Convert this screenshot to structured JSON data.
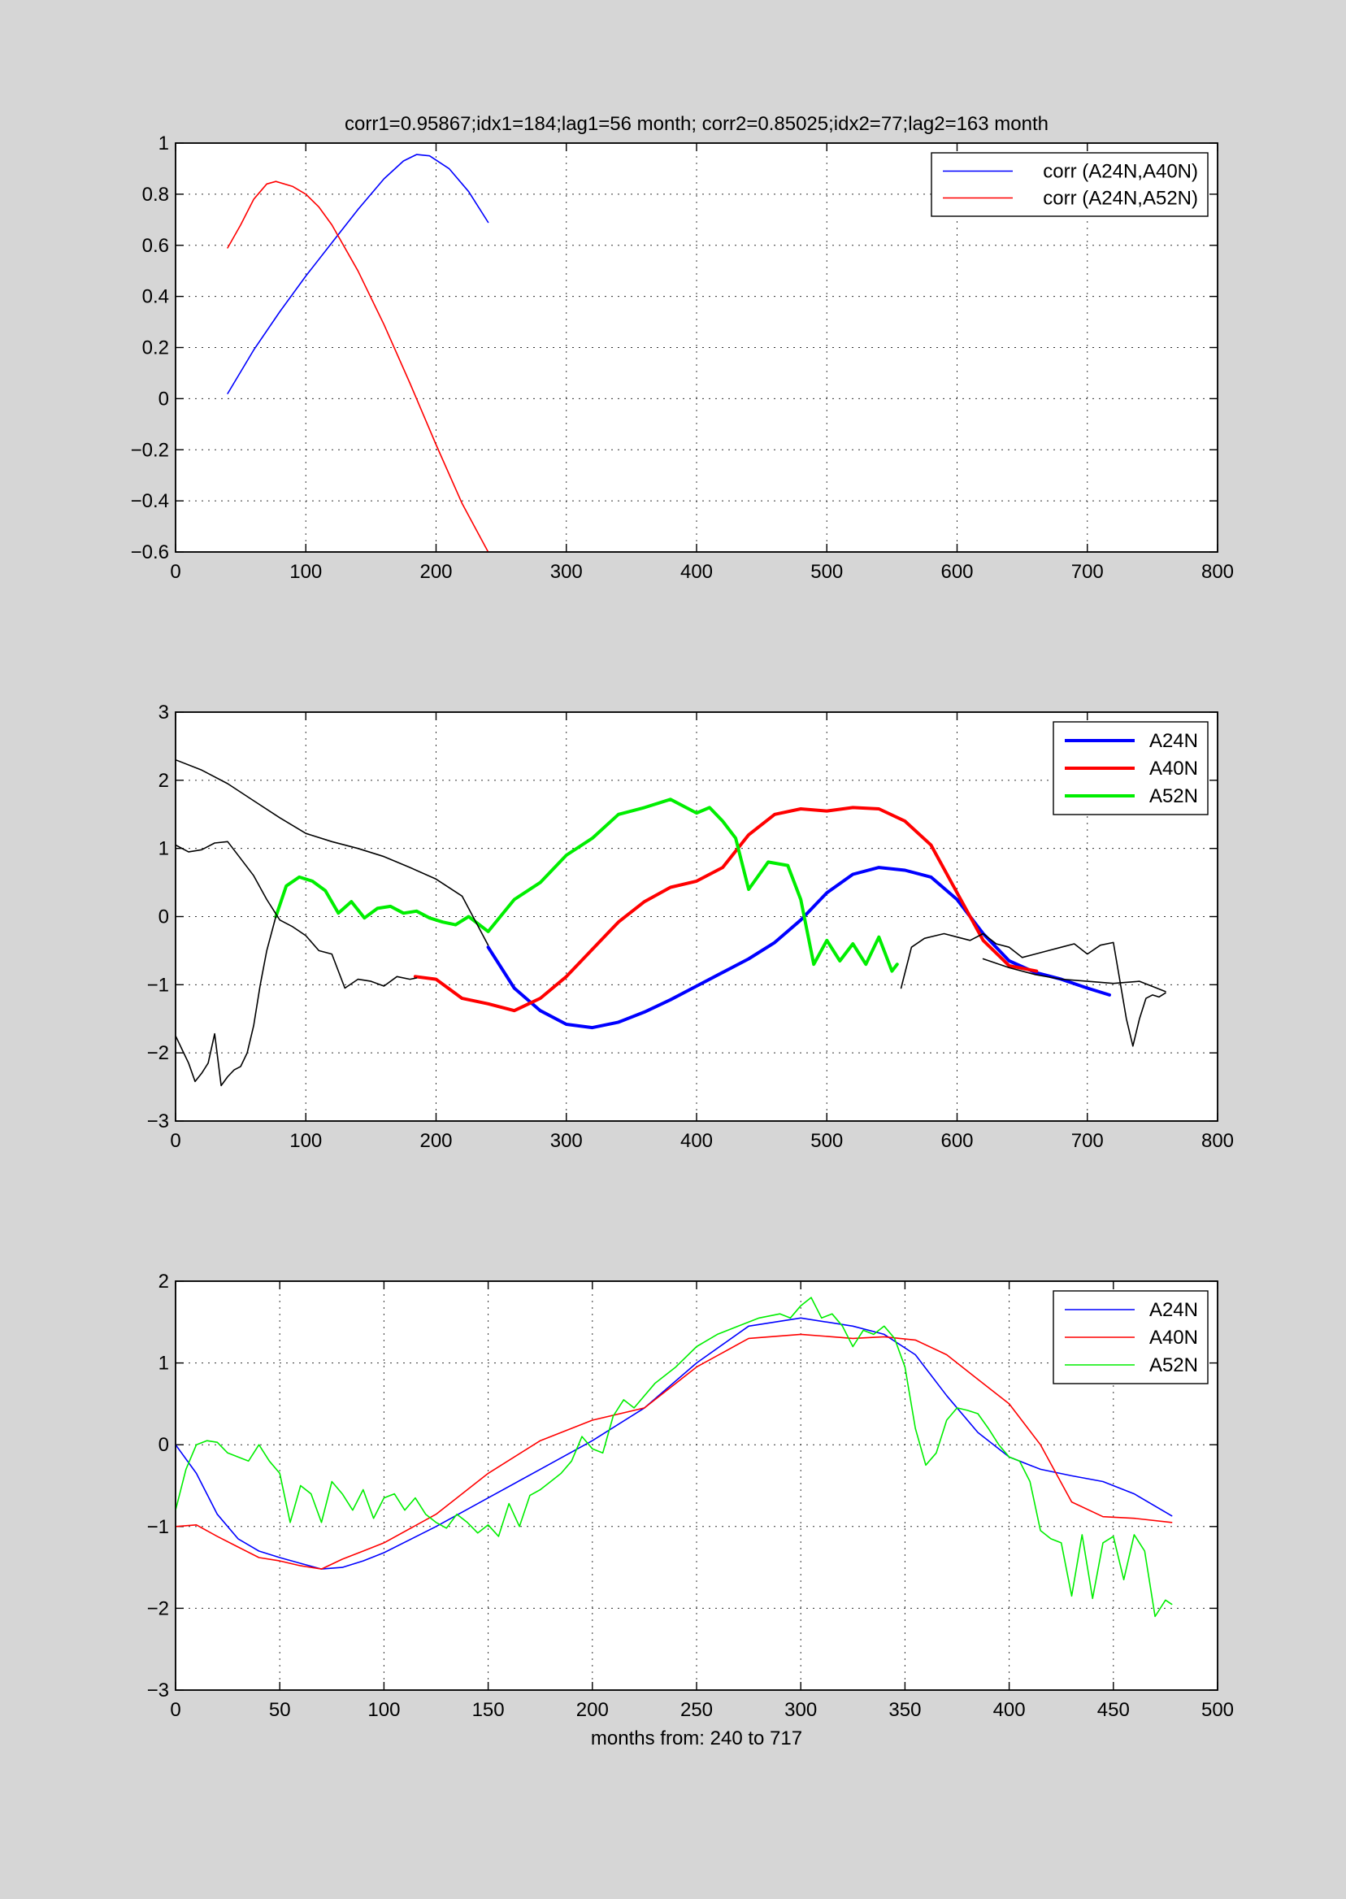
{
  "chart_data": [
    {
      "type": "line",
      "title": "corr1=0.95867;idx1=184;lag1=56 month;   corr2=0.85025;idx2=77;lag2=163 month",
      "xlabel": "",
      "ylabel": "",
      "xlim": [
        0,
        800
      ],
      "ylim": [
        -0.6,
        1
      ],
      "xticks": [
        0,
        100,
        200,
        300,
        400,
        500,
        600,
        700,
        800
      ],
      "yticks": [
        -0.6,
        -0.4,
        -0.2,
        0,
        0.2,
        0.4,
        0.6,
        0.8,
        1
      ],
      "grid": true,
      "legend_position": "top-right",
      "series": [
        {
          "name": "corr (A24N,A40N)",
          "color": "#0000ff",
          "width": 1.6,
          "x": [
            40,
            60,
            80,
            100,
            120,
            140,
            160,
            175,
            185,
            195,
            210,
            225,
            240
          ],
          "y": [
            0.02,
            0.19,
            0.34,
            0.48,
            0.61,
            0.74,
            0.86,
            0.93,
            0.955,
            0.95,
            0.9,
            0.81,
            0.69
          ]
        },
        {
          "name": "corr (A24N,A52N)",
          "color": "#ff0000",
          "width": 1.6,
          "x": [
            40,
            50,
            60,
            70,
            77,
            90,
            100,
            110,
            120,
            140,
            160,
            180,
            200,
            220,
            240
          ],
          "y": [
            0.59,
            0.68,
            0.78,
            0.84,
            0.85,
            0.83,
            0.8,
            0.75,
            0.68,
            0.5,
            0.29,
            0.06,
            -0.18,
            -0.41,
            -0.6
          ]
        }
      ]
    },
    {
      "type": "line",
      "title": "",
      "xlabel": "",
      "ylabel": "",
      "xlim": [
        0,
        800
      ],
      "ylim": [
        -3,
        3
      ],
      "xticks": [
        0,
        100,
        200,
        300,
        400,
        500,
        600,
        700,
        800
      ],
      "yticks": [
        -3,
        -2,
        -1,
        0,
        1,
        2,
        3
      ],
      "grid": true,
      "legend_position": "top-right",
      "series": [
        {
          "name": "A24N",
          "color": "#0000ff",
          "width": 4,
          "legend": true,
          "x": [
            240,
            260,
            280,
            300,
            320,
            340,
            360,
            380,
            400,
            420,
            440,
            460,
            480,
            500,
            520,
            540,
            560,
            580,
            600,
            620,
            640,
            660,
            680,
            700,
            717
          ],
          "y": [
            -0.45,
            -1.05,
            -1.38,
            -1.58,
            -1.63,
            -1.55,
            -1.4,
            -1.22,
            -1.02,
            -0.82,
            -0.62,
            -0.38,
            -0.05,
            0.35,
            0.62,
            0.72,
            0.68,
            0.58,
            0.25,
            -0.25,
            -0.65,
            -0.82,
            -0.92,
            -1.05,
            -1.15
          ]
        },
        {
          "name": "A40N",
          "color": "#ff0000",
          "width": 4,
          "legend": true,
          "x": [
            184,
            200,
            220,
            240,
            260,
            280,
            300,
            320,
            340,
            360,
            380,
            400,
            420,
            440,
            460,
            480,
            500,
            520,
            540,
            560,
            580,
            600,
            620,
            640,
            661
          ],
          "y": [
            -0.88,
            -0.92,
            -1.2,
            -1.28,
            -1.38,
            -1.2,
            -0.88,
            -0.48,
            -0.08,
            0.22,
            0.43,
            0.52,
            0.72,
            1.2,
            1.5,
            1.58,
            1.55,
            1.6,
            1.58,
            1.4,
            1.05,
            0.35,
            -0.35,
            -0.72,
            -0.8
          ]
        },
        {
          "name": "A52N",
          "color": "#00ee00",
          "width": 4,
          "legend": true,
          "x": [
            77,
            85,
            95,
            105,
            115,
            125,
            135,
            145,
            155,
            165,
            175,
            185,
            195,
            205,
            215,
            225,
            240,
            260,
            280,
            300,
            320,
            340,
            360,
            380,
            400,
            410,
            420,
            430,
            440,
            455,
            470,
            480,
            490,
            500,
            510,
            520,
            530,
            540,
            550,
            554
          ],
          "y": [
            0.0,
            0.45,
            0.58,
            0.52,
            0.38,
            0.05,
            0.22,
            -0.02,
            0.12,
            0.15,
            0.05,
            0.08,
            -0.02,
            -0.08,
            -0.12,
            0.0,
            -0.22,
            0.25,
            0.5,
            0.9,
            1.15,
            1.5,
            1.6,
            1.72,
            1.52,
            1.6,
            1.4,
            1.15,
            0.4,
            0.8,
            0.75,
            0.25,
            -0.7,
            -0.35,
            -0.65,
            -0.4,
            -0.7,
            -0.3,
            -0.8,
            -0.7
          ]
        },
        {
          "name": "",
          "color": "#000000",
          "width": 1.6,
          "legend": false,
          "x": [
            0,
            20,
            40,
            60,
            80,
            100,
            120,
            140,
            160,
            180,
            200,
            220,
            240
          ],
          "y": [
            2.3,
            2.15,
            1.95,
            1.7,
            1.45,
            1.22,
            1.1,
            1.0,
            0.88,
            0.72,
            0.55,
            0.3,
            -0.42
          ]
        },
        {
          "name": "",
          "color": "#000000",
          "width": 1.6,
          "legend": false,
          "x": [
            0,
            10,
            20,
            30,
            40,
            50,
            60,
            70,
            80,
            90,
            100,
            110,
            120,
            130,
            140,
            150,
            160,
            170,
            180,
            185
          ],
          "y": [
            1.05,
            0.95,
            0.98,
            1.08,
            1.1,
            0.85,
            0.6,
            0.25,
            -0.05,
            -0.15,
            -0.28,
            -0.5,
            -0.55,
            -1.05,
            -0.92,
            -0.95,
            -1.02,
            -0.88,
            -0.92,
            -0.9
          ]
        },
        {
          "name": "",
          "color": "#000000",
          "width": 1.6,
          "legend": false,
          "x": [
            0,
            5,
            10,
            15,
            20,
            25,
            30,
            35,
            40,
            45,
            50,
            55,
            60,
            65,
            70,
            77
          ],
          "y": [
            -1.75,
            -1.95,
            -2.15,
            -2.42,
            -2.3,
            -2.15,
            -1.72,
            -2.48,
            -2.35,
            -2.25,
            -2.2,
            -2.0,
            -1.6,
            -1.0,
            -0.5,
            0.0
          ]
        },
        {
          "name": "",
          "color": "#000000",
          "width": 1.6,
          "legend": false,
          "x": [
            557,
            565,
            575,
            590,
            600,
            610,
            620,
            630,
            640,
            650,
            660,
            670,
            680,
            690,
            700,
            710,
            720,
            730,
            735,
            740,
            745,
            750,
            755,
            760
          ],
          "y": [
            -1.05,
            -0.45,
            -0.32,
            -0.25,
            -0.3,
            -0.35,
            -0.25,
            -0.4,
            -0.45,
            -0.6,
            -0.55,
            -0.5,
            -0.45,
            -0.4,
            -0.55,
            -0.42,
            -0.38,
            -1.5,
            -1.9,
            -1.5,
            -1.2,
            -1.15,
            -1.18,
            -1.12
          ]
        },
        {
          "name": "",
          "color": "#000000",
          "width": 1.6,
          "legend": false,
          "x": [
            620,
            640,
            660,
            680,
            700,
            720,
            740,
            760
          ],
          "y": [
            -0.62,
            -0.75,
            -0.85,
            -0.92,
            -0.95,
            -0.98,
            -0.95,
            -1.1
          ]
        }
      ]
    },
    {
      "type": "line",
      "title": "",
      "xlabel": "months from: 240 to 717",
      "ylabel": "",
      "xlim": [
        0,
        500
      ],
      "ylim": [
        -3,
        2
      ],
      "xticks": [
        0,
        50,
        100,
        150,
        200,
        250,
        300,
        350,
        400,
        450,
        500
      ],
      "yticks": [
        -3,
        -2,
        -1,
        0,
        1,
        2
      ],
      "grid": true,
      "legend_position": "top-right",
      "series": [
        {
          "name": "A24N",
          "color": "#0000ff",
          "width": 1.6,
          "legend": true,
          "x": [
            0,
            10,
            20,
            30,
            40,
            50,
            60,
            70,
            80,
            90,
            100,
            125,
            150,
            175,
            200,
            225,
            250,
            275,
            300,
            325,
            340,
            355,
            370,
            385,
            400,
            415,
            430,
            445,
            460,
            478
          ],
          "y": [
            0.0,
            -0.35,
            -0.85,
            -1.15,
            -1.3,
            -1.38,
            -1.45,
            -1.52,
            -1.5,
            -1.42,
            -1.32,
            -1.0,
            -0.65,
            -0.3,
            0.05,
            0.45,
            1.0,
            1.45,
            1.55,
            1.45,
            1.35,
            1.1,
            0.6,
            0.15,
            -0.15,
            -0.3,
            -0.38,
            -0.45,
            -0.6,
            -0.87
          ]
        },
        {
          "name": "A40N",
          "color": "#ff0000",
          "width": 1.6,
          "legend": true,
          "x": [
            0,
            10,
            20,
            30,
            40,
            50,
            60,
            70,
            80,
            90,
            100,
            125,
            150,
            175,
            200,
            225,
            250,
            275,
            300,
            325,
            340,
            355,
            370,
            385,
            400,
            415,
            430,
            445,
            460,
            478
          ],
          "y": [
            -1.0,
            -0.98,
            -1.12,
            -1.25,
            -1.38,
            -1.42,
            -1.48,
            -1.52,
            -1.4,
            -1.3,
            -1.2,
            -0.85,
            -0.35,
            0.05,
            0.3,
            0.45,
            0.95,
            1.3,
            1.35,
            1.3,
            1.32,
            1.28,
            1.1,
            0.8,
            0.5,
            0.0,
            -0.7,
            -0.88,
            -0.9,
            -0.95
          ]
        },
        {
          "name": "A52N",
          "color": "#00ee00",
          "width": 1.6,
          "legend": true,
          "x": [
            0,
            5,
            10,
            15,
            20,
            25,
            30,
            35,
            40,
            45,
            50,
            55,
            60,
            65,
            70,
            75,
            80,
            85,
            90,
            95,
            100,
            105,
            110,
            115,
            120,
            125,
            130,
            135,
            140,
            145,
            150,
            155,
            160,
            165,
            170,
            175,
            180,
            185,
            190,
            195,
            200,
            205,
            210,
            215,
            220,
            230,
            240,
            250,
            260,
            270,
            280,
            290,
            295,
            300,
            305,
            310,
            315,
            320,
            325,
            330,
            335,
            340,
            345,
            350,
            355,
            360,
            365,
            370,
            375,
            380,
            385,
            390,
            395,
            400,
            405,
            410,
            415,
            420,
            425,
            430,
            435,
            440,
            445,
            450,
            455,
            460,
            465,
            470,
            475,
            478
          ],
          "y": [
            -0.8,
            -0.3,
            0.0,
            0.05,
            0.03,
            -0.1,
            -0.15,
            -0.2,
            0.0,
            -0.2,
            -0.35,
            -0.95,
            -0.5,
            -0.6,
            -0.95,
            -0.45,
            -0.6,
            -0.8,
            -0.55,
            -0.9,
            -0.65,
            -0.6,
            -0.8,
            -0.65,
            -0.85,
            -0.95,
            -1.02,
            -0.85,
            -0.95,
            -1.08,
            -0.98,
            -1.12,
            -0.72,
            -1.0,
            -0.62,
            -0.55,
            -0.45,
            -0.35,
            -0.2,
            0.1,
            -0.05,
            -0.1,
            0.35,
            0.55,
            0.45,
            0.75,
            0.95,
            1.2,
            1.35,
            1.45,
            1.55,
            1.6,
            1.55,
            1.7,
            1.8,
            1.55,
            1.6,
            1.45,
            1.2,
            1.4,
            1.35,
            1.45,
            1.3,
            0.95,
            0.2,
            -0.25,
            -0.1,
            0.3,
            0.45,
            0.42,
            0.38,
            0.2,
            0.0,
            -0.15,
            -0.2,
            -0.45,
            -1.05,
            -1.15,
            -1.2,
            -1.85,
            -1.1,
            -1.88,
            -1.2,
            -1.12,
            -1.65,
            -1.1,
            -1.3,
            -2.1,
            -1.9,
            -1.95
          ]
        }
      ]
    }
  ]
}
